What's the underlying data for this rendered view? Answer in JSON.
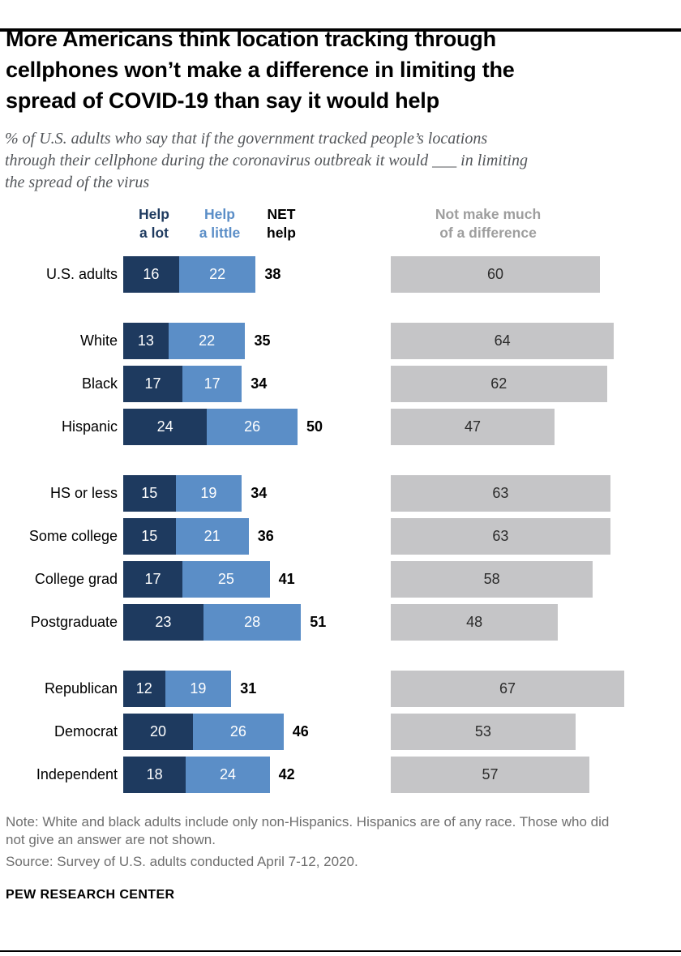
{
  "header": {
    "title": "More Americans think location tracking through cellphones won’t make a difference in limiting the spread of COVID-19 than say it would help",
    "subtitle": "% of U.S. adults who say that if the government tracked people’s locations through their cellphone during the coronavirus outbreak it would ___ in limiting the spread of the virus"
  },
  "chart_data": {
    "type": "bar",
    "orientation": "horizontal",
    "variant": "stacked percentage bars with separate gray comparison bar",
    "x_range": [
      0,
      100
    ],
    "unit": "% of U.S. adults",
    "column_headers": {
      "help_a_lot": "Help\na lot",
      "help_a_little": "Help\na little",
      "net_help": "NET\nhelp",
      "no_difference": "Not make much\nof a difference"
    },
    "colors": {
      "help_a_lot": "#1e3a5f",
      "help_a_little": "#5b8ec7",
      "no_difference": "#c5c5c7",
      "no_difference_header_text": "#9e9e9e",
      "net_text": "#000000"
    },
    "groups": [
      [
        "U.S. adults"
      ],
      [
        "White",
        "Black",
        "Hispanic"
      ],
      [
        "HS or less",
        "Some college",
        "College grad",
        "Postgraduate"
      ],
      [
        "Republican",
        "Democrat",
        "Independent"
      ]
    ],
    "rows": [
      {
        "label": "U.S. adults",
        "help_a_lot": 16,
        "help_a_little": 22,
        "net": 38,
        "no_difference": 60
      },
      {
        "label": "White",
        "help_a_lot": 13,
        "help_a_little": 22,
        "net": 35,
        "no_difference": 64
      },
      {
        "label": "Black",
        "help_a_lot": 17,
        "help_a_little": 17,
        "net": 34,
        "no_difference": 62
      },
      {
        "label": "Hispanic",
        "help_a_lot": 24,
        "help_a_little": 26,
        "net": 50,
        "no_difference": 47
      },
      {
        "label": "HS or less",
        "help_a_lot": 15,
        "help_a_little": 19,
        "net": 34,
        "no_difference": 63
      },
      {
        "label": "Some college",
        "help_a_lot": 15,
        "help_a_little": 21,
        "net": 36,
        "no_difference": 63
      },
      {
        "label": "College grad",
        "help_a_lot": 17,
        "help_a_little": 25,
        "net": 41,
        "no_difference": 58
      },
      {
        "label": "Postgraduate",
        "help_a_lot": 23,
        "help_a_little": 28,
        "net": 51,
        "no_difference": 48
      },
      {
        "label": "Republican",
        "help_a_lot": 12,
        "help_a_little": 19,
        "net": 31,
        "no_difference": 67
      },
      {
        "label": "Democrat",
        "help_a_lot": 20,
        "help_a_little": 26,
        "net": 46,
        "no_difference": 53
      },
      {
        "label": "Independent",
        "help_a_lot": 18,
        "help_a_little": 24,
        "net": 42,
        "no_difference": 57
      }
    ]
  },
  "footer": {
    "note": "Note: White and black adults include only non-Hispanics. Hispanics are of any race. Those who did not give an answer are not shown.",
    "source": "Source: Survey of U.S. adults conducted April 7-12, 2020.",
    "brand": "PEW RESEARCH CENTER"
  }
}
